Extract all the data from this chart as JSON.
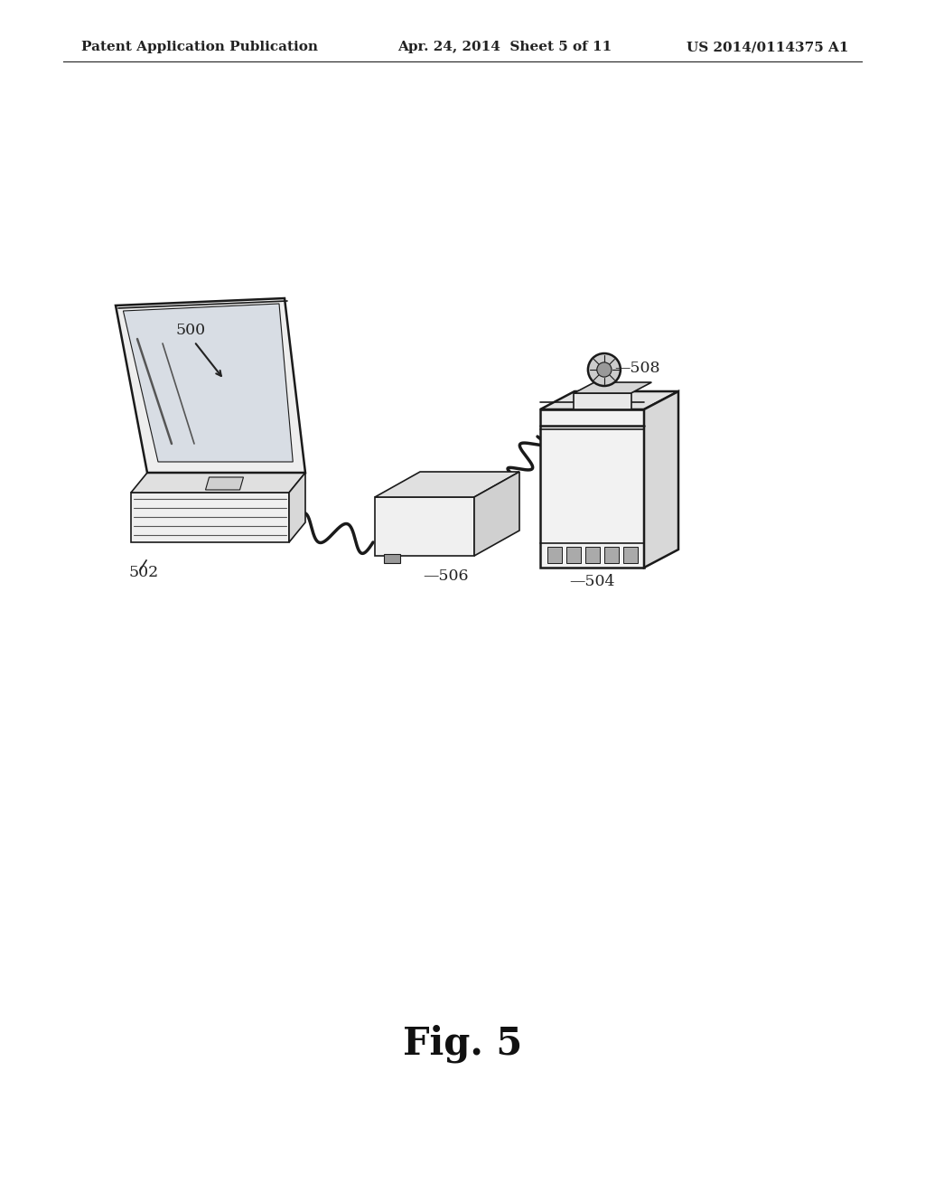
{
  "bg_color": "#ffffff",
  "header_left": "Patent Application Publication",
  "header_mid": "Apr. 24, 2014  Sheet 5 of 11",
  "header_right": "US 2014/0114375 A1",
  "fig_label": "Fig. 5",
  "label_500": "500",
  "label_502": "502",
  "label_504": "504",
  "label_506": "506",
  "label_508": "508"
}
